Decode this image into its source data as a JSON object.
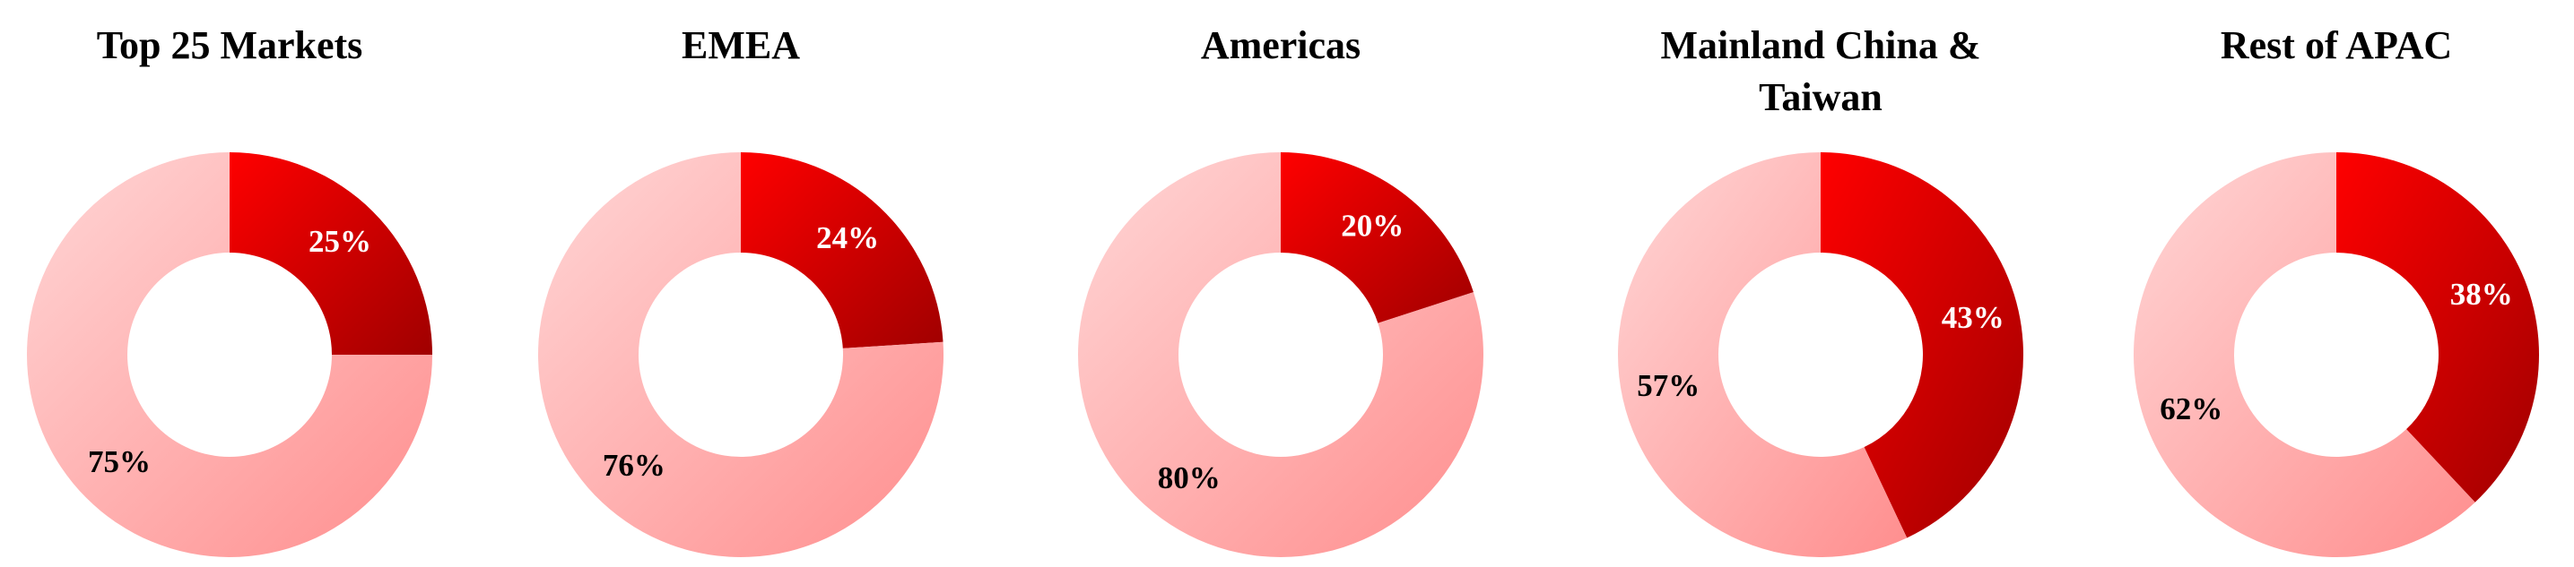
{
  "chart_data": [
    {
      "type": "pie",
      "donut": true,
      "title": "Top 25 Markets",
      "values": [
        25,
        75
      ],
      "value_labels": [
        "25%",
        "75%"
      ],
      "colors": [
        [
          "#ff0000",
          "#a00000"
        ],
        [
          "#ffd6d6",
          "#ff8e8e"
        ]
      ],
      "label_colors": [
        "#ffffff",
        "#000000"
      ]
    },
    {
      "type": "pie",
      "donut": true,
      "title": "EMEA",
      "values": [
        24,
        76
      ],
      "value_labels": [
        "24%",
        "76%"
      ],
      "colors": [
        [
          "#ff0000",
          "#a00000"
        ],
        [
          "#ffd6d6",
          "#ff8e8e"
        ]
      ],
      "label_colors": [
        "#ffffff",
        "#000000"
      ]
    },
    {
      "type": "pie",
      "donut": true,
      "title": "Americas",
      "values": [
        20,
        80
      ],
      "value_labels": [
        "20%",
        "80%"
      ],
      "colors": [
        [
          "#ff0000",
          "#a00000"
        ],
        [
          "#ffd6d6",
          "#ff8e8e"
        ]
      ],
      "label_colors": [
        "#ffffff",
        "#000000"
      ]
    },
    {
      "type": "pie",
      "donut": true,
      "title": "Mainland China & Taiwan",
      "values": [
        43,
        57
      ],
      "value_labels": [
        "43%",
        "57%"
      ],
      "colors": [
        [
          "#ff0000",
          "#a00000"
        ],
        [
          "#ffd6d6",
          "#ff8e8e"
        ]
      ],
      "label_colors": [
        "#ffffff",
        "#000000"
      ]
    },
    {
      "type": "pie",
      "donut": true,
      "title": "Rest of APAC",
      "values": [
        38,
        62
      ],
      "value_labels": [
        "38%",
        "62%"
      ],
      "colors": [
        [
          "#ff0000",
          "#a00000"
        ],
        [
          "#ffd6d6",
          "#ff8e8e"
        ]
      ],
      "label_colors": [
        "#ffffff",
        "#000000"
      ]
    }
  ]
}
